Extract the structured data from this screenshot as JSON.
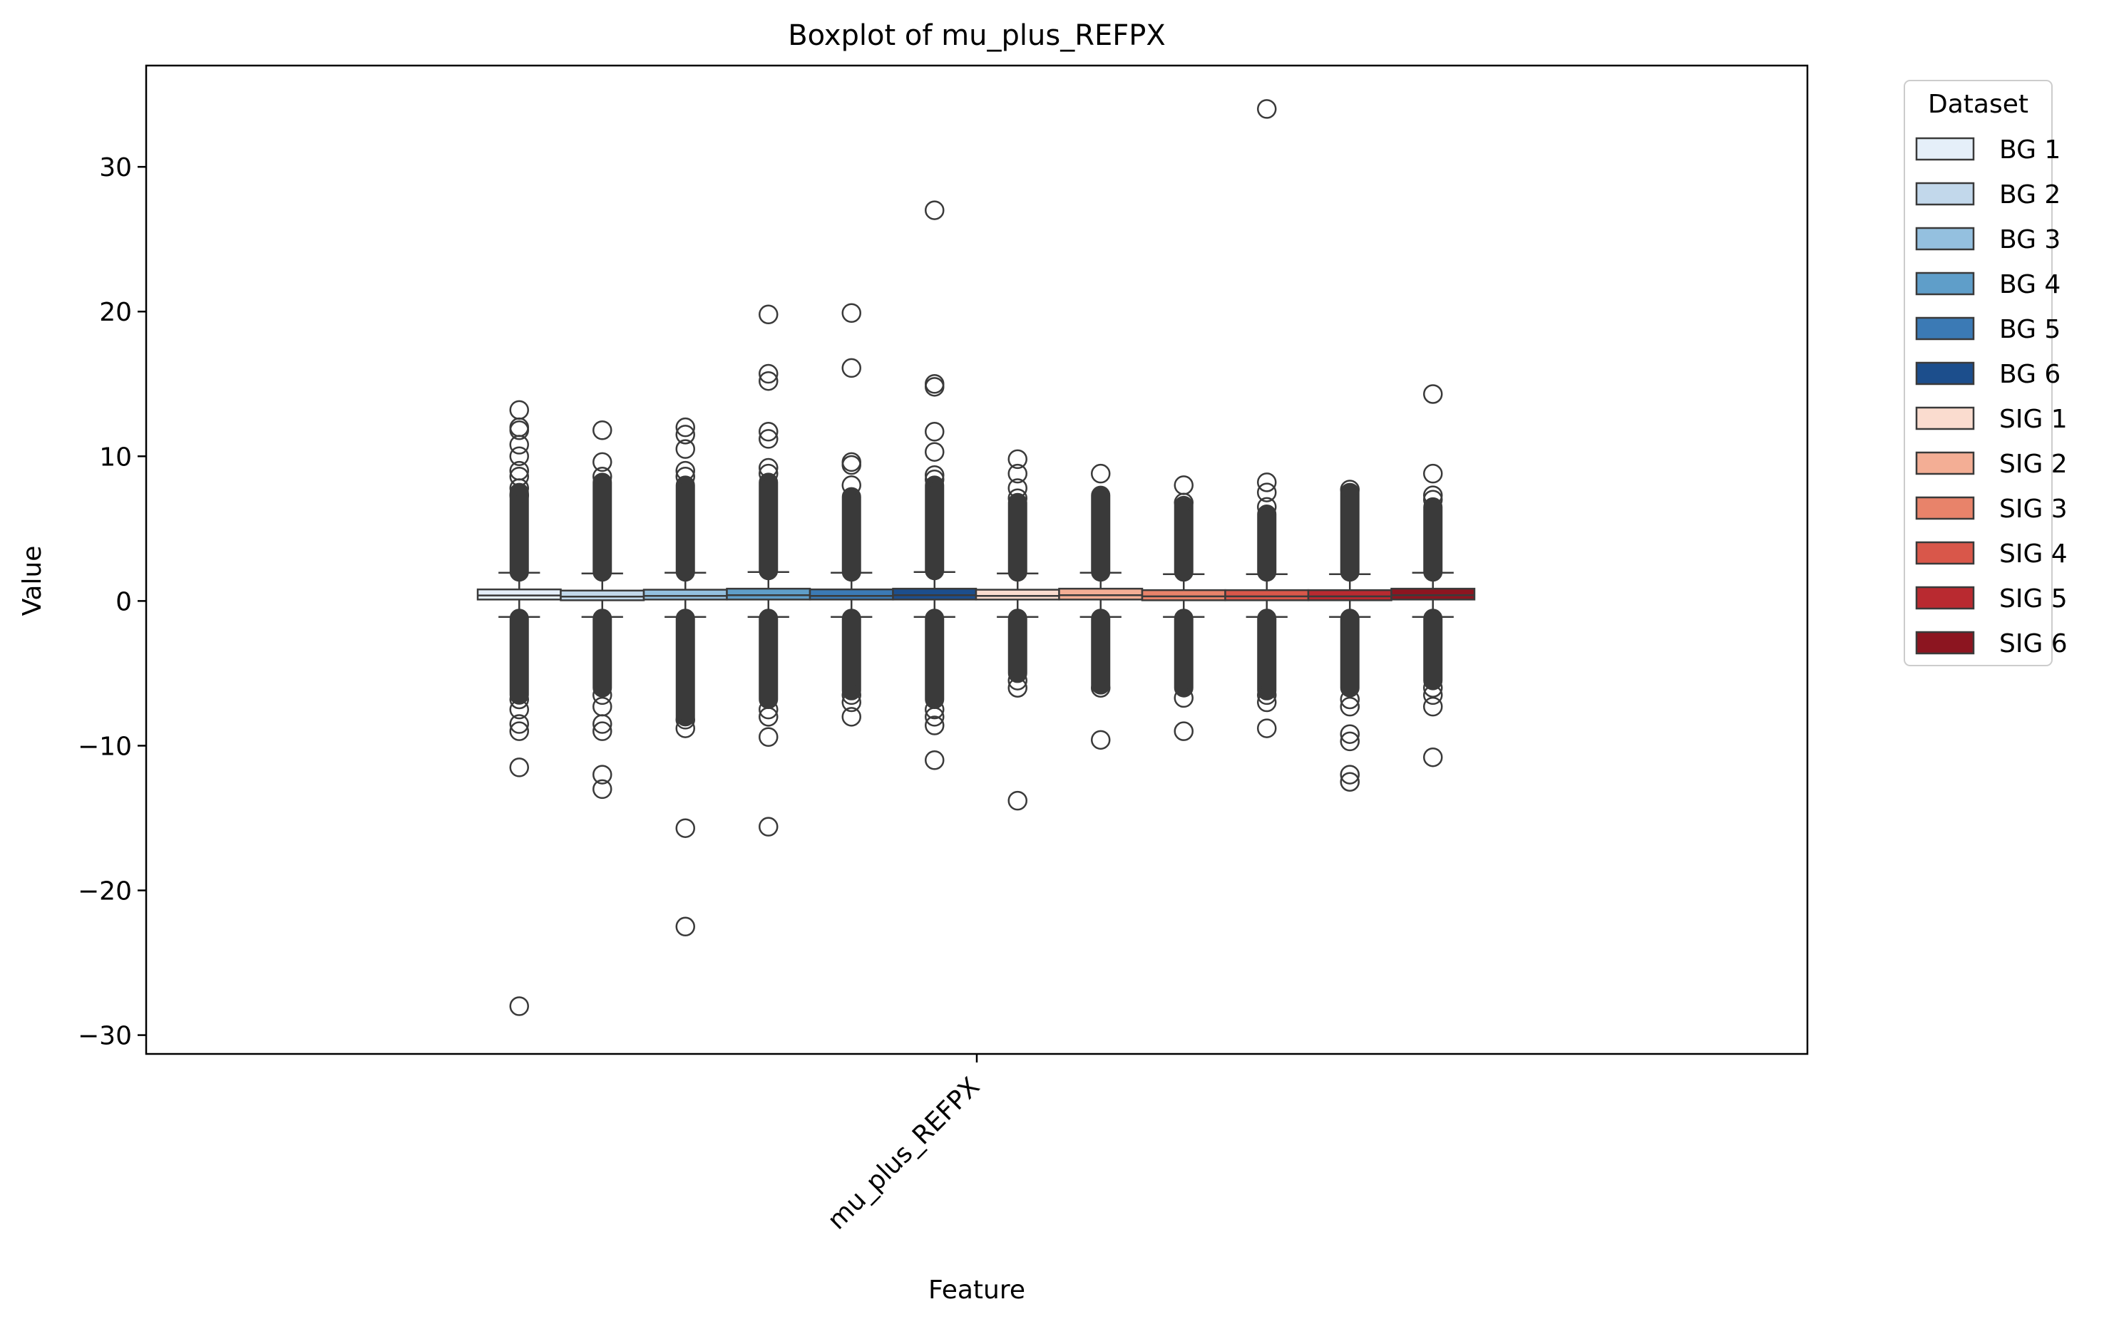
{
  "chart_data": {
    "type": "boxplot",
    "title": "Boxplot of mu_plus_REFPX",
    "xlabel": "Feature",
    "ylabel": "Value",
    "categories": [
      "mu_plus_REFPX"
    ],
    "ylim": [
      -31.3,
      37.0
    ],
    "yticks": [
      30,
      20,
      10,
      0,
      -10,
      -20,
      -30
    ],
    "ytick_labels": [
      "30",
      "20",
      "10",
      "0",
      "−10",
      "−20",
      "−30"
    ],
    "grid": false,
    "legend": {
      "title": "Dataset",
      "placement": "outside-right"
    },
    "series": [
      {
        "name": "BG 1",
        "color": "#e5eff9",
        "q1": 0.1,
        "median": 0.38,
        "q3": 0.8,
        "whisker_low": -1.1,
        "whisker_high": 1.95,
        "outliers_high": [
          13.2,
          12.0,
          11.8,
          10.8,
          10.0,
          9.0,
          8.6,
          7.8,
          7.3
        ],
        "outliers_low": [
          -6.8,
          -7.5,
          -8.5,
          -9.0,
          -11.5,
          -28.0
        ],
        "dense_high": [
          2.0,
          7.5
        ],
        "dense_low": [
          -1.2,
          -6.5
        ]
      },
      {
        "name": "BG 2",
        "color": "#c2d8eb",
        "q1": 0.05,
        "median": 0.3,
        "q3": 0.72,
        "whisker_low": -1.1,
        "whisker_high": 1.9,
        "outliers_high": [
          11.8,
          9.6,
          8.6
        ],
        "outliers_low": [
          -6.5,
          -7.3,
          -8.5,
          -9.0,
          -12.0,
          -13.0
        ],
        "dense_high": [
          2.0,
          8.2
        ],
        "dense_low": [
          -1.2,
          -6.0
        ]
      },
      {
        "name": "BG 3",
        "color": "#94c0df",
        "q1": 0.1,
        "median": 0.35,
        "q3": 0.78,
        "whisker_low": -1.1,
        "whisker_high": 1.95,
        "outliers_high": [
          12.0,
          11.5,
          10.5,
          9.0,
          8.6
        ],
        "outliers_low": [
          -8.2,
          -8.8,
          -15.7,
          -22.5
        ],
        "dense_high": [
          2.0,
          8.0
        ],
        "dense_low": [
          -1.2,
          -8.0
        ]
      },
      {
        "name": "BG 4",
        "color": "#5f9ec9",
        "q1": 0.1,
        "median": 0.4,
        "q3": 0.85,
        "whisker_low": -1.1,
        "whisker_high": 2.0,
        "outliers_high": [
          19.8,
          15.7,
          15.2,
          11.7,
          11.2,
          9.2,
          8.8
        ],
        "outliers_low": [
          -7.5,
          -8.0,
          -9.4,
          -15.6
        ],
        "dense_high": [
          2.1,
          8.2
        ],
        "dense_low": [
          -1.2,
          -6.8
        ]
      },
      {
        "name": "BG 5",
        "color": "#3b7ab5",
        "q1": 0.1,
        "median": 0.35,
        "q3": 0.8,
        "whisker_low": -1.1,
        "whisker_high": 1.95,
        "outliers_high": [
          19.9,
          16.1,
          9.6,
          9.4,
          8.0
        ],
        "outliers_low": [
          -6.5,
          -7.0,
          -8.0
        ],
        "dense_high": [
          2.0,
          7.2
        ],
        "dense_low": [
          -1.2,
          -6.2
        ]
      },
      {
        "name": "BG 6",
        "color": "#1c4e8c",
        "q1": 0.1,
        "median": 0.4,
        "q3": 0.85,
        "whisker_low": -1.1,
        "whisker_high": 2.0,
        "outliers_high": [
          27.0,
          15.0,
          14.8,
          11.7,
          10.3,
          8.7,
          8.4
        ],
        "outliers_low": [
          -7.5,
          -8.0,
          -8.6,
          -11.0
        ],
        "dense_high": [
          2.1,
          8.0
        ],
        "dense_low": [
          -1.2,
          -6.8
        ]
      },
      {
        "name": "SIG 1",
        "color": "#fadccf",
        "q1": 0.1,
        "median": 0.35,
        "q3": 0.78,
        "whisker_low": -1.1,
        "whisker_high": 1.9,
        "outliers_high": [
          9.8,
          8.8,
          7.8,
          7.1
        ],
        "outliers_low": [
          -5.5,
          -6.0,
          -13.8
        ],
        "dense_high": [
          2.0,
          6.8
        ],
        "dense_low": [
          -1.2,
          -5.0
        ]
      },
      {
        "name": "SIG 2",
        "color": "#f3ae95",
        "q1": 0.1,
        "median": 0.4,
        "q3": 0.85,
        "whisker_low": -1.1,
        "whisker_high": 1.95,
        "outliers_high": [
          8.8
        ],
        "outliers_low": [
          -6.0,
          -9.6
        ],
        "dense_high": [
          2.0,
          7.3
        ],
        "dense_low": [
          -1.2,
          -5.8
        ]
      },
      {
        "name": "SIG 3",
        "color": "#e8836a",
        "q1": 0.05,
        "median": 0.32,
        "q3": 0.75,
        "whisker_low": -1.1,
        "whisker_high": 1.85,
        "outliers_high": [
          8.0,
          6.8
        ],
        "outliers_low": [
          -6.7,
          -9.0
        ],
        "dense_high": [
          2.0,
          6.6
        ],
        "dense_low": [
          -1.2,
          -6.0
        ]
      },
      {
        "name": "SIG 4",
        "color": "#d9574a",
        "q1": 0.05,
        "median": 0.32,
        "q3": 0.75,
        "whisker_low": -1.1,
        "whisker_high": 1.85,
        "outliers_high": [
          34.0,
          8.2,
          7.5,
          6.5
        ],
        "outliers_low": [
          -6.5,
          -7.0,
          -8.8
        ],
        "dense_high": [
          2.0,
          6.0
        ],
        "dense_low": [
          -1.2,
          -6.2
        ]
      },
      {
        "name": "SIG 5",
        "color": "#b92a30",
        "q1": 0.05,
        "median": 0.32,
        "q3": 0.75,
        "whisker_low": -1.1,
        "whisker_high": 1.85,
        "outliers_high": [
          7.7
        ],
        "outliers_low": [
          -6.8,
          -7.3,
          -9.2,
          -9.7,
          -12.0,
          -12.5
        ],
        "dense_high": [
          2.0,
          7.5
        ],
        "dense_low": [
          -1.2,
          -6.0
        ]
      },
      {
        "name": "SIG 6",
        "color": "#8c1520",
        "q1": 0.1,
        "median": 0.4,
        "q3": 0.85,
        "whisker_low": -1.1,
        "whisker_high": 1.95,
        "outliers_high": [
          14.3,
          8.8,
          7.3,
          7.0
        ],
        "outliers_low": [
          -6.0,
          -6.5,
          -7.3,
          -10.8
        ],
        "dense_high": [
          2.0,
          6.5
        ],
        "dense_low": [
          -1.2,
          -5.5
        ]
      }
    ]
  }
}
